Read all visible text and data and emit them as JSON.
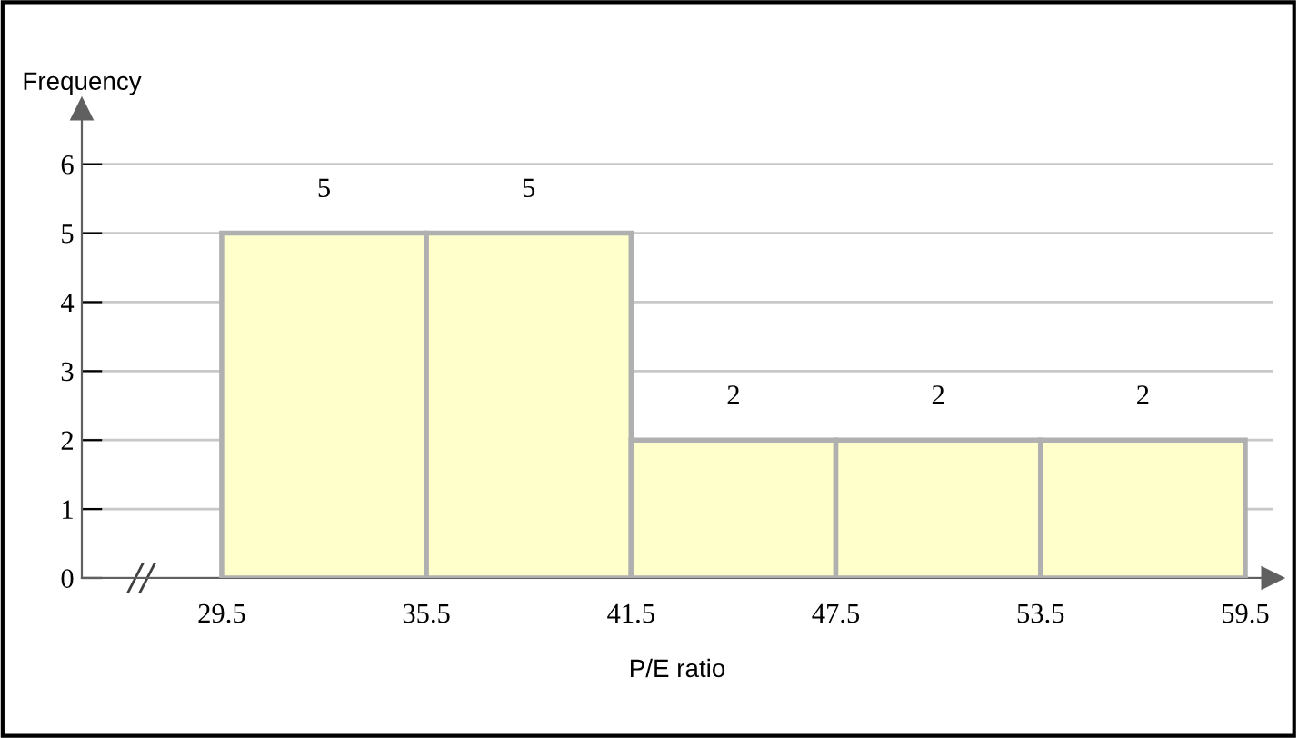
{
  "chart_data": {
    "type": "histogram",
    "xlabel": "P/E ratio",
    "ylabel": "Frequency",
    "bins": [
      29.5,
      35.5,
      41.5,
      47.5,
      53.5,
      59.5
    ],
    "values": [
      5,
      5,
      2,
      2,
      2
    ],
    "color": "#ffffcc",
    "xlim": [
      25.4,
      60.3
    ],
    "ylim": [
      0,
      6.8
    ],
    "xticks": [
      29.5,
      35.5,
      41.5,
      47.5,
      53.5,
      59.5
    ],
    "yticks": [
      0,
      1,
      2,
      3,
      4,
      5,
      6
    ],
    "grid": "y",
    "data_labels": true
  }
}
